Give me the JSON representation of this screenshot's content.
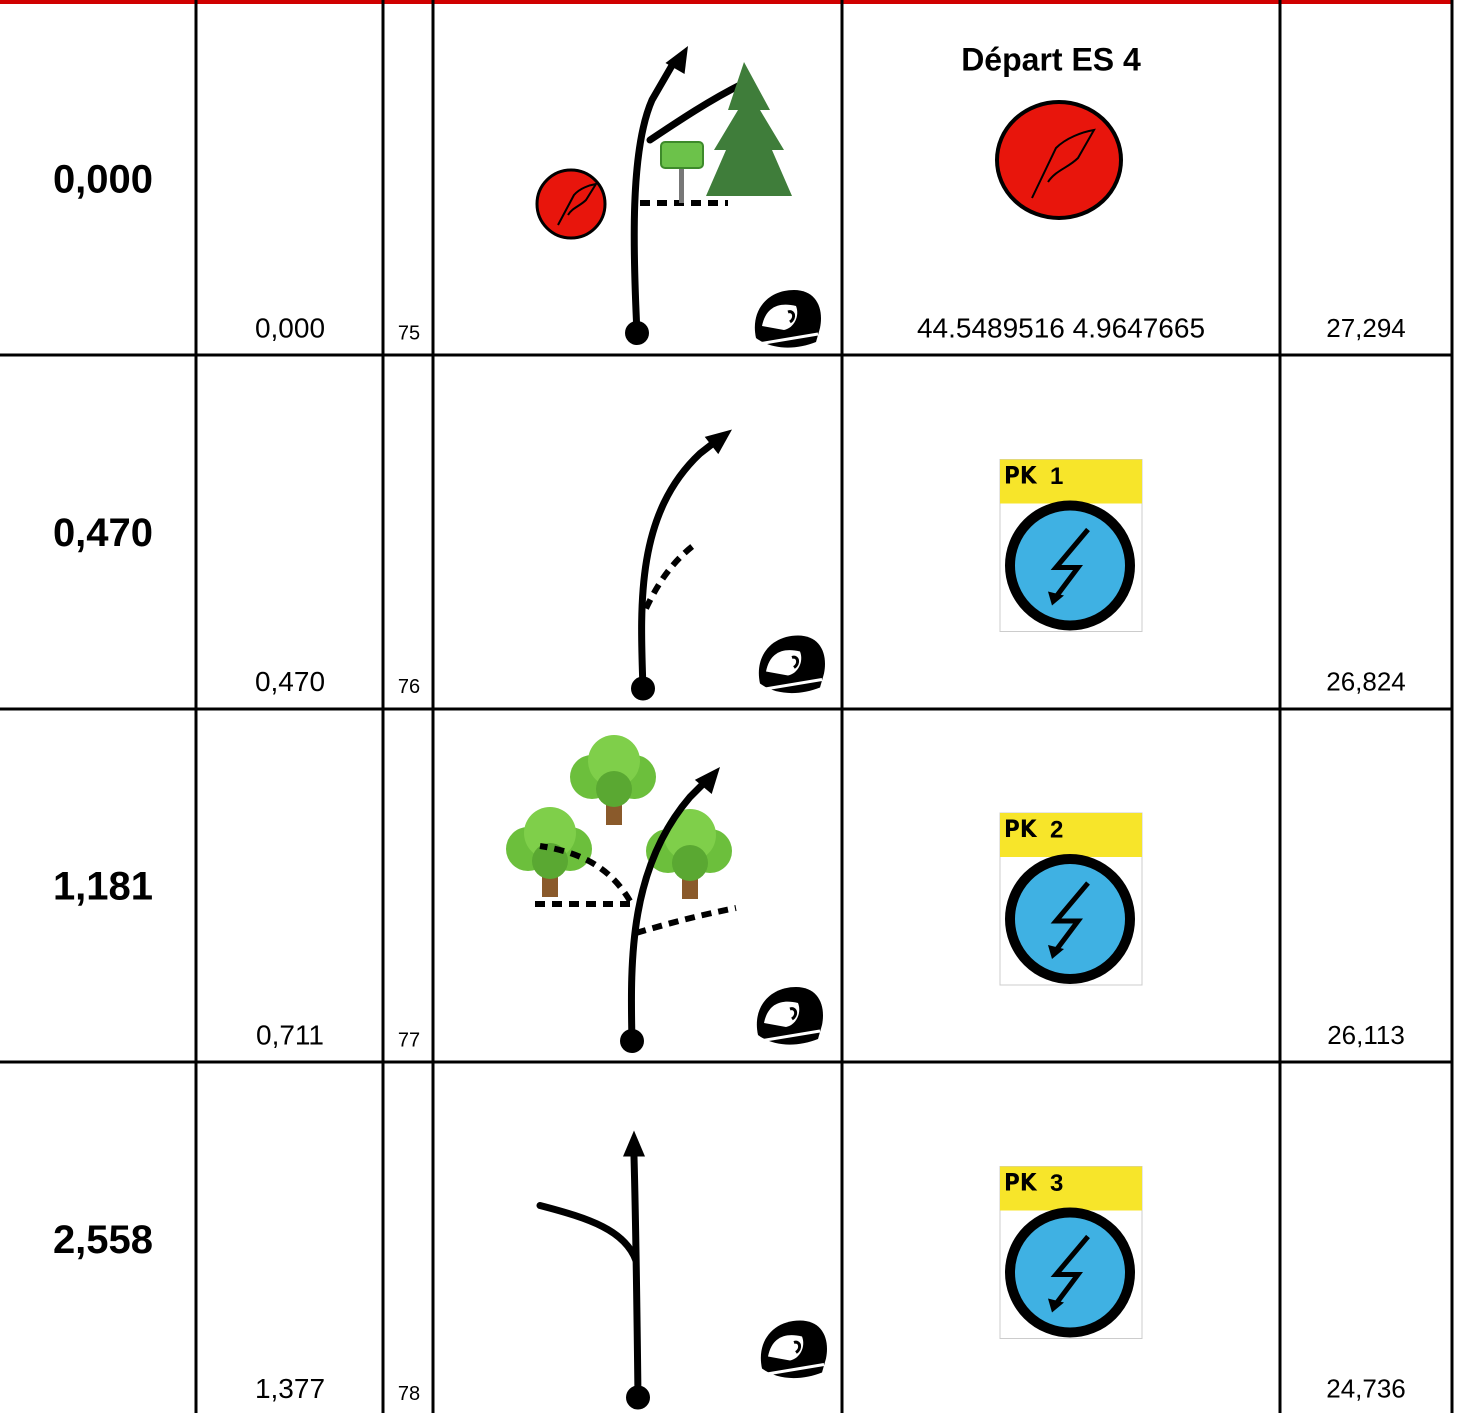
{
  "table": {
    "rows": [
      {
        "total": "0,000",
        "partial": "0,000",
        "number": "75",
        "info": {
          "title": "Départ ES 4",
          "coords": "44.5489516  4.9647665"
        },
        "remaining": "27,294"
      },
      {
        "total": "0,470",
        "partial": "0,470",
        "number": "76",
        "sign": {
          "prefix": "PK",
          "number": "1"
        },
        "remaining": "26,824"
      },
      {
        "total": "1,181",
        "partial": "0,711",
        "number": "77",
        "sign": {
          "prefix": "PK",
          "number": "2"
        },
        "remaining": "26,113"
      },
      {
        "total": "2,558",
        "partial": "1,377",
        "number": "78",
        "sign": {
          "prefix": "PK",
          "number": "3"
        },
        "remaining": "24,736"
      }
    ]
  }
}
